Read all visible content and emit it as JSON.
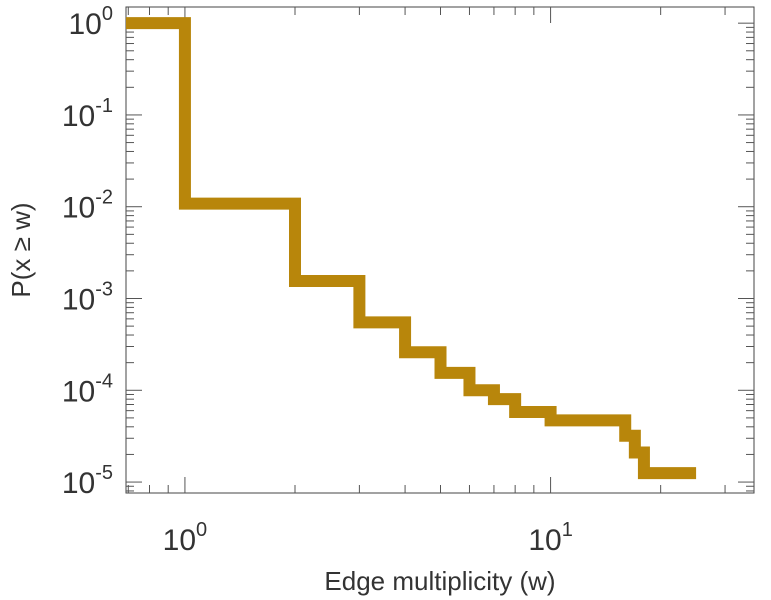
{
  "chart_data": {
    "type": "line",
    "step": "post",
    "xlabel": "Edge multiplicity (w)",
    "ylabel": "P(x ≥ w)",
    "xscale": "log",
    "yscale": "log",
    "xlim": [
      0.69,
      36
    ],
    "ylim": [
      7.6e-06,
      1.5
    ],
    "grid": false,
    "legend": "none",
    "xticks": [
      {
        "value": 1,
        "base": "10",
        "exp": "0"
      },
      {
        "value": 10,
        "base": "10",
        "exp": "1"
      }
    ],
    "yticks": [
      {
        "value": 1,
        "base": "10",
        "exp": "0"
      },
      {
        "value": 0.1,
        "base": "10",
        "exp": "-1"
      },
      {
        "value": 0.01,
        "base": "10",
        "exp": "-2"
      },
      {
        "value": 0.001,
        "base": "10",
        "exp": "-3"
      },
      {
        "value": 0.0001,
        "base": "10",
        "exp": "-4"
      },
      {
        "value": 1e-05,
        "base": "10",
        "exp": "-5"
      }
    ],
    "series": [
      {
        "color": "#b8860b",
        "x": [
          0.69,
          1,
          2,
          3,
          4,
          5,
          6,
          7,
          8,
          10,
          16,
          17,
          18,
          25
        ],
        "y": [
          1,
          0.0108,
          0.00155,
          0.00055,
          0.00026,
          0.000155,
          0.0001,
          8e-05,
          5.8e-05,
          4.7e-05,
          3.2e-05,
          2.1e-05,
          1.25e-05,
          1.25e-05
        ]
      }
    ]
  }
}
